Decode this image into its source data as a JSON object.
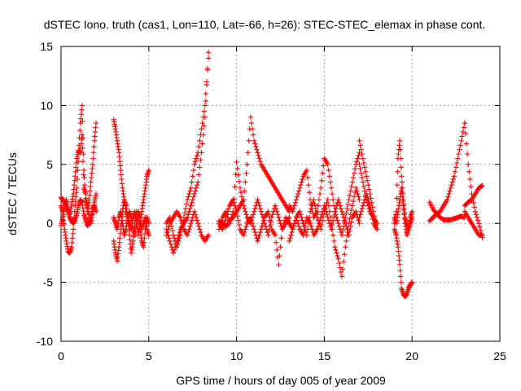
{
  "chart_data": {
    "type": "scatter",
    "title": "dSTEC Iono. truth (cas1, Lon=110, Lat=-66, h=26): STEC-STEC_elemax in phase cont.",
    "xlabel": "GPS time / hours of day 005 of year 2009",
    "ylabel": "dSTEC  / TECUs",
    "xlim": [
      0,
      25
    ],
    "ylim": [
      -10,
      15
    ],
    "xticks": [
      0,
      5,
      10,
      15,
      20,
      25
    ],
    "yticks": [
      -10,
      -5,
      0,
      5,
      10,
      15
    ],
    "grid": true,
    "marker": "+",
    "color": "#ff0000",
    "arcs": [
      {
        "x": [
          0.0,
          0.1,
          0.2,
          0.3,
          0.4,
          0.5,
          0.6,
          0.7,
          0.8,
          0.9,
          1.0,
          1.1,
          1.2,
          1.3,
          1.4,
          1.5,
          1.6,
          1.7,
          1.8,
          1.9,
          2.0
        ],
        "y": [
          -0.2,
          0.5,
          1.5,
          2.0,
          1.2,
          0.8,
          1.6,
          2.5,
          4.0,
          5.5,
          6.2,
          6.0,
          7.5,
          3.0,
          2.5,
          1.0,
          2.0,
          3.5,
          5.0,
          7.0,
          8.5
        ]
      },
      {
        "x": [
          0.0,
          0.1,
          0.2,
          0.3,
          0.4,
          0.5,
          0.6,
          0.7,
          0.8,
          0.9,
          1.0,
          1.1,
          1.2,
          1.3,
          1.4,
          1.5,
          1.6,
          1.7,
          1.8,
          1.9,
          2.0
        ],
        "y": [
          1.5,
          1.0,
          -0.5,
          -1.5,
          -2.4,
          -2.5,
          -2.0,
          -0.5,
          1.5,
          3.0,
          6.0,
          8.5,
          10.0,
          4.5,
          2.0,
          1.5,
          0.5,
          0.0,
          1.0,
          1.8,
          2.5
        ]
      },
      {
        "x": [
          0.0,
          0.1,
          0.2,
          0.3,
          0.4,
          0.5,
          0.6,
          0.7,
          0.8,
          0.9,
          1.0,
          1.1,
          1.2,
          1.3,
          1.4,
          1.5,
          1.6,
          1.7,
          1.8,
          1.9,
          2.0
        ],
        "y": [
          2.2,
          2.0,
          1.8,
          1.4,
          1.0,
          0.5,
          0.2,
          0.0,
          0.3,
          0.8,
          1.5,
          2.0,
          1.8,
          0.8,
          0.3,
          -0.2,
          0.0,
          0.5,
          1.2,
          1.5,
          1.0
        ]
      },
      {
        "x": [
          3.0,
          3.1,
          3.2,
          3.3,
          3.4,
          3.5,
          3.6,
          3.7,
          3.8,
          3.9,
          4.0,
          4.1,
          4.2,
          4.3,
          4.4,
          4.5,
          4.6,
          4.7,
          4.8,
          4.9,
          5.0
        ],
        "y": [
          8.8,
          8.0,
          7.0,
          6.0,
          4.5,
          3.0,
          2.0,
          1.0,
          0.5,
          0.0,
          -0.5,
          0.5,
          1.0,
          0.2,
          -1.0,
          0.0,
          1.0,
          2.0,
          3.0,
          4.0,
          4.5
        ]
      },
      {
        "x": [
          3.0,
          3.1,
          3.2,
          3.3,
          3.4,
          3.5,
          3.6,
          3.7,
          3.8,
          3.9,
          4.0,
          4.1,
          4.2,
          4.3,
          4.4,
          4.5,
          4.6,
          4.7,
          4.8,
          4.9,
          5.0
        ],
        "y": [
          -1.5,
          -2.5,
          -3.2,
          -2.0,
          -0.5,
          1.0,
          2.0,
          1.5,
          0.5,
          -1.0,
          -2.5,
          -1.5,
          0.0,
          1.0,
          0.5,
          -0.5,
          -1.5,
          -2.0,
          -0.5,
          0.5,
          0.0
        ]
      },
      {
        "x": [
          3.0,
          3.1,
          3.2,
          3.3,
          3.4,
          3.5,
          3.6,
          3.7,
          3.8,
          3.9,
          4.0,
          4.1,
          4.2,
          4.3,
          4.4,
          4.5,
          4.6,
          4.7,
          4.8,
          4.9,
          5.0
        ],
        "y": [
          0.5,
          0.0,
          -0.5,
          0.5,
          1.0,
          0.0,
          -1.0,
          -0.5,
          0.5,
          1.0,
          0.5,
          -0.5,
          -1.0,
          0.0,
          1.0,
          0.5,
          -0.5,
          0.0,
          0.5,
          -0.5,
          -1.0
        ]
      },
      {
        "x": [
          6.0,
          6.2,
          6.4,
          6.6,
          6.8,
          7.0,
          7.2,
          7.4,
          7.6,
          7.8,
          8.0,
          8.2,
          8.4
        ],
        "y": [
          -0.5,
          -1.5,
          -2.5,
          -1.5,
          -0.5,
          0.0,
          0.5,
          1.5,
          2.5,
          3.5,
          6.0,
          9.0,
          14.5
        ]
      },
      {
        "x": [
          6.0,
          6.2,
          6.4,
          6.6,
          6.8,
          7.0,
          7.2,
          7.4,
          7.6,
          7.8,
          8.0,
          8.2,
          8.4
        ],
        "y": [
          0.0,
          0.5,
          -1.0,
          -2.0,
          -1.0,
          0.5,
          2.0,
          3.0,
          5.0,
          6.0,
          8.0,
          10.0,
          14.0
        ]
      },
      {
        "x": [
          6.0,
          6.2,
          6.4,
          6.6,
          6.8,
          7.0,
          7.2,
          7.4,
          7.6,
          7.8,
          8.0,
          8.2,
          8.4
        ],
        "y": [
          -1.0,
          0.0,
          0.5,
          1.0,
          0.5,
          -0.5,
          -1.0,
          0.0,
          1.0,
          0.0,
          -1.0,
          -1.5,
          -1.0
        ]
      },
      {
        "x": [
          9.0,
          9.2,
          9.4,
          9.6,
          9.8,
          10.0,
          10.2,
          10.4,
          10.6,
          10.8,
          11.0,
          11.2,
          11.4,
          11.6,
          11.8,
          12.0,
          12.2,
          12.4,
          12.6,
          12.8,
          13.0
        ],
        "y": [
          0.2,
          0.0,
          -0.3,
          0.2,
          0.5,
          1.0,
          1.5,
          2.0,
          5.0,
          9.0,
          7.0,
          6.0,
          5.0,
          4.5,
          4.0,
          3.5,
          3.0,
          2.5,
          2.0,
          1.5,
          1.0
        ]
      },
      {
        "x": [
          9.0,
          9.2,
          9.4,
          9.6,
          9.8,
          10.0,
          10.2,
          10.4,
          10.6,
          10.8,
          11.0,
          11.2,
          11.4,
          11.6,
          11.8,
          12.0,
          12.2,
          12.4,
          12.6,
          12.8,
          13.0
        ],
        "y": [
          -0.5,
          0.5,
          1.0,
          0.0,
          1.0,
          5.2,
          3.0,
          1.5,
          0.5,
          0.0,
          1.0,
          2.0,
          1.0,
          0.0,
          -1.0,
          0.5,
          1.5,
          0.5,
          -0.5,
          0.0,
          0.5
        ]
      },
      {
        "x": [
          9.0,
          9.2,
          9.4,
          9.6,
          9.8,
          10.0,
          10.2,
          10.4,
          10.6,
          10.8,
          11.0,
          11.2,
          11.4,
          11.6,
          11.8,
          12.0,
          12.2,
          12.4,
          12.6,
          12.8,
          13.0
        ],
        "y": [
          0.0,
          -0.5,
          0.5,
          1.5,
          2.0,
          1.0,
          -0.5,
          -1.0,
          0.0,
          0.5,
          -0.5,
          -1.5,
          -0.5,
          0.5,
          1.0,
          -0.5,
          -1.0,
          -3.5,
          -0.5,
          0.5,
          0.0
        ]
      },
      {
        "x": [
          13.0,
          13.2,
          13.4,
          13.6,
          13.8,
          14.0,
          14.2,
          14.4,
          14.6,
          14.8,
          15.0,
          15.2,
          15.4,
          15.6,
          15.8,
          16.0,
          16.2,
          16.4,
          16.6,
          16.8,
          17.0
        ],
        "y": [
          1.5,
          1.0,
          2.0,
          3.0,
          4.0,
          4.5,
          2.0,
          0.5,
          1.0,
          3.0,
          5.5,
          5.0,
          3.0,
          1.0,
          0.0,
          -1.0,
          0.5,
          2.0,
          3.5,
          5.0,
          6.0
        ]
      },
      {
        "x": [
          13.0,
          13.2,
          13.4,
          13.6,
          13.8,
          14.0,
          14.2,
          14.4,
          14.6,
          14.8,
          15.0,
          15.2,
          15.4,
          15.6,
          15.8,
          16.0,
          16.2,
          16.4,
          16.6,
          16.8,
          17.0
        ],
        "y": [
          0.0,
          -0.5,
          0.5,
          1.0,
          0.0,
          -1.0,
          1.0,
          2.0,
          0.5,
          -0.5,
          1.0,
          2.0,
          0.0,
          -2.0,
          -3.0,
          -4.5,
          -2.0,
          0.0,
          1.5,
          3.0,
          2.0
        ]
      },
      {
        "x": [
          13.0,
          13.2,
          13.4,
          13.6,
          13.8,
          14.0,
          14.2,
          14.4,
          14.6,
          14.8,
          15.0,
          15.2,
          15.4,
          15.6,
          15.8,
          16.0,
          16.2,
          16.4,
          16.6,
          16.8,
          17.0
        ],
        "y": [
          -1.5,
          -0.5,
          0.5,
          -0.5,
          -1.0,
          0.5,
          0.0,
          -1.0,
          -0.5,
          0.5,
          1.5,
          0.5,
          -0.5,
          1.0,
          2.0,
          1.0,
          0.0,
          -1.0,
          0.5,
          1.0,
          0.0
        ]
      },
      {
        "x": [
          17.0,
          17.2,
          17.4,
          17.6,
          17.8,
          18.0
        ],
        "y": [
          5.0,
          3.5,
          2.0,
          1.0,
          0.5,
          0.0
        ]
      },
      {
        "x": [
          17.0,
          17.2,
          17.4,
          17.6,
          17.8,
          18.0
        ],
        "y": [
          7.0,
          5.5,
          4.0,
          2.5,
          1.0,
          -0.5
        ]
      },
      {
        "x": [
          17.0,
          17.2,
          17.4,
          17.6,
          17.8,
          18.0
        ],
        "y": [
          0.5,
          1.5,
          2.5,
          1.5,
          0.0,
          -0.5
        ]
      },
      {
        "x": [
          19.0,
          19.1,
          19.2,
          19.3,
          19.4,
          19.5,
          19.6,
          19.7,
          19.8,
          19.9,
          20.0
        ],
        "y": [
          0.0,
          1.0,
          5.5,
          7.0,
          4.0,
          2.0,
          0.5,
          0.0,
          -0.5,
          0.5,
          1.0
        ]
      },
      {
        "x": [
          19.0,
          19.1,
          19.2,
          19.3,
          19.4,
          19.5,
          19.6,
          19.7,
          19.8,
          19.9,
          20.0
        ],
        "y": [
          -0.5,
          -1.0,
          -2.0,
          -3.5,
          -5.5,
          -6.0,
          -6.2,
          -6.0,
          -5.5,
          -5.2,
          -5.0
        ]
      },
      {
        "x": [
          19.0,
          19.1,
          19.2,
          19.3,
          19.4,
          19.5,
          19.6,
          19.7,
          19.8,
          19.9,
          20.0
        ],
        "y": [
          0.5,
          0.0,
          1.0,
          2.0,
          3.0,
          1.5,
          0.0,
          -1.0,
          -0.5,
          0.0,
          0.5
        ]
      },
      {
        "x": [
          21.0,
          21.2,
          21.4,
          21.6,
          21.8,
          22.0,
          22.2,
          22.4,
          22.6,
          22.8,
          23.0
        ],
        "y": [
          0.2,
          0.5,
          0.8,
          1.0,
          1.5,
          2.0,
          3.0,
          4.0,
          5.5,
          7.0,
          8.5
        ]
      },
      {
        "x": [
          21.0,
          21.2,
          21.4,
          21.6,
          21.8,
          22.0,
          22.2,
          22.4,
          22.6,
          22.8,
          23.0
        ],
        "y": [
          1.8,
          1.2,
          0.8,
          0.5,
          0.3,
          0.3,
          0.3,
          0.4,
          0.5,
          0.6,
          0.5
        ]
      },
      {
        "x": [
          23.0,
          23.2,
          23.4,
          23.6,
          23.8,
          24.0
        ],
        "y": [
          8.5,
          5.0,
          2.5,
          1.0,
          0.0,
          -1.2
        ]
      },
      {
        "x": [
          23.0,
          23.2,
          23.4,
          23.6,
          23.8,
          24.0
        ],
        "y": [
          1.0,
          0.5,
          0.0,
          -0.5,
          -1.0,
          -1.0
        ]
      },
      {
        "x": [
          23.0,
          23.2,
          23.4,
          23.6,
          23.8,
          24.0
        ],
        "y": [
          1.5,
          1.8,
          2.0,
          2.5,
          3.0,
          3.2
        ]
      }
    ]
  }
}
